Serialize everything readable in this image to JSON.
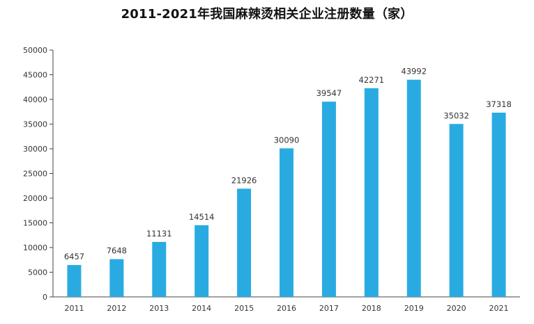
{
  "chart_data": {
    "type": "bar",
    "title": "2011-2021年我国麻辣烫相关企业注册数量（家）",
    "xlabel": "",
    "ylabel": "",
    "categories": [
      "2011",
      "2012",
      "2013",
      "2014",
      "2015",
      "2016",
      "2017",
      "2018",
      "2019",
      "2020",
      "2021"
    ],
    "values": [
      6457,
      7648,
      11131,
      14514,
      21926,
      30090,
      39547,
      42271,
      43992,
      35032,
      37318
    ],
    "ylim": [
      0,
      50000
    ],
    "yticks": [
      0,
      5000,
      10000,
      15000,
      20000,
      25000,
      30000,
      35000,
      40000,
      45000,
      50000
    ],
    "grid": false,
    "legend": "none",
    "bar_color": "#29abe2",
    "show_data_labels": true
  }
}
